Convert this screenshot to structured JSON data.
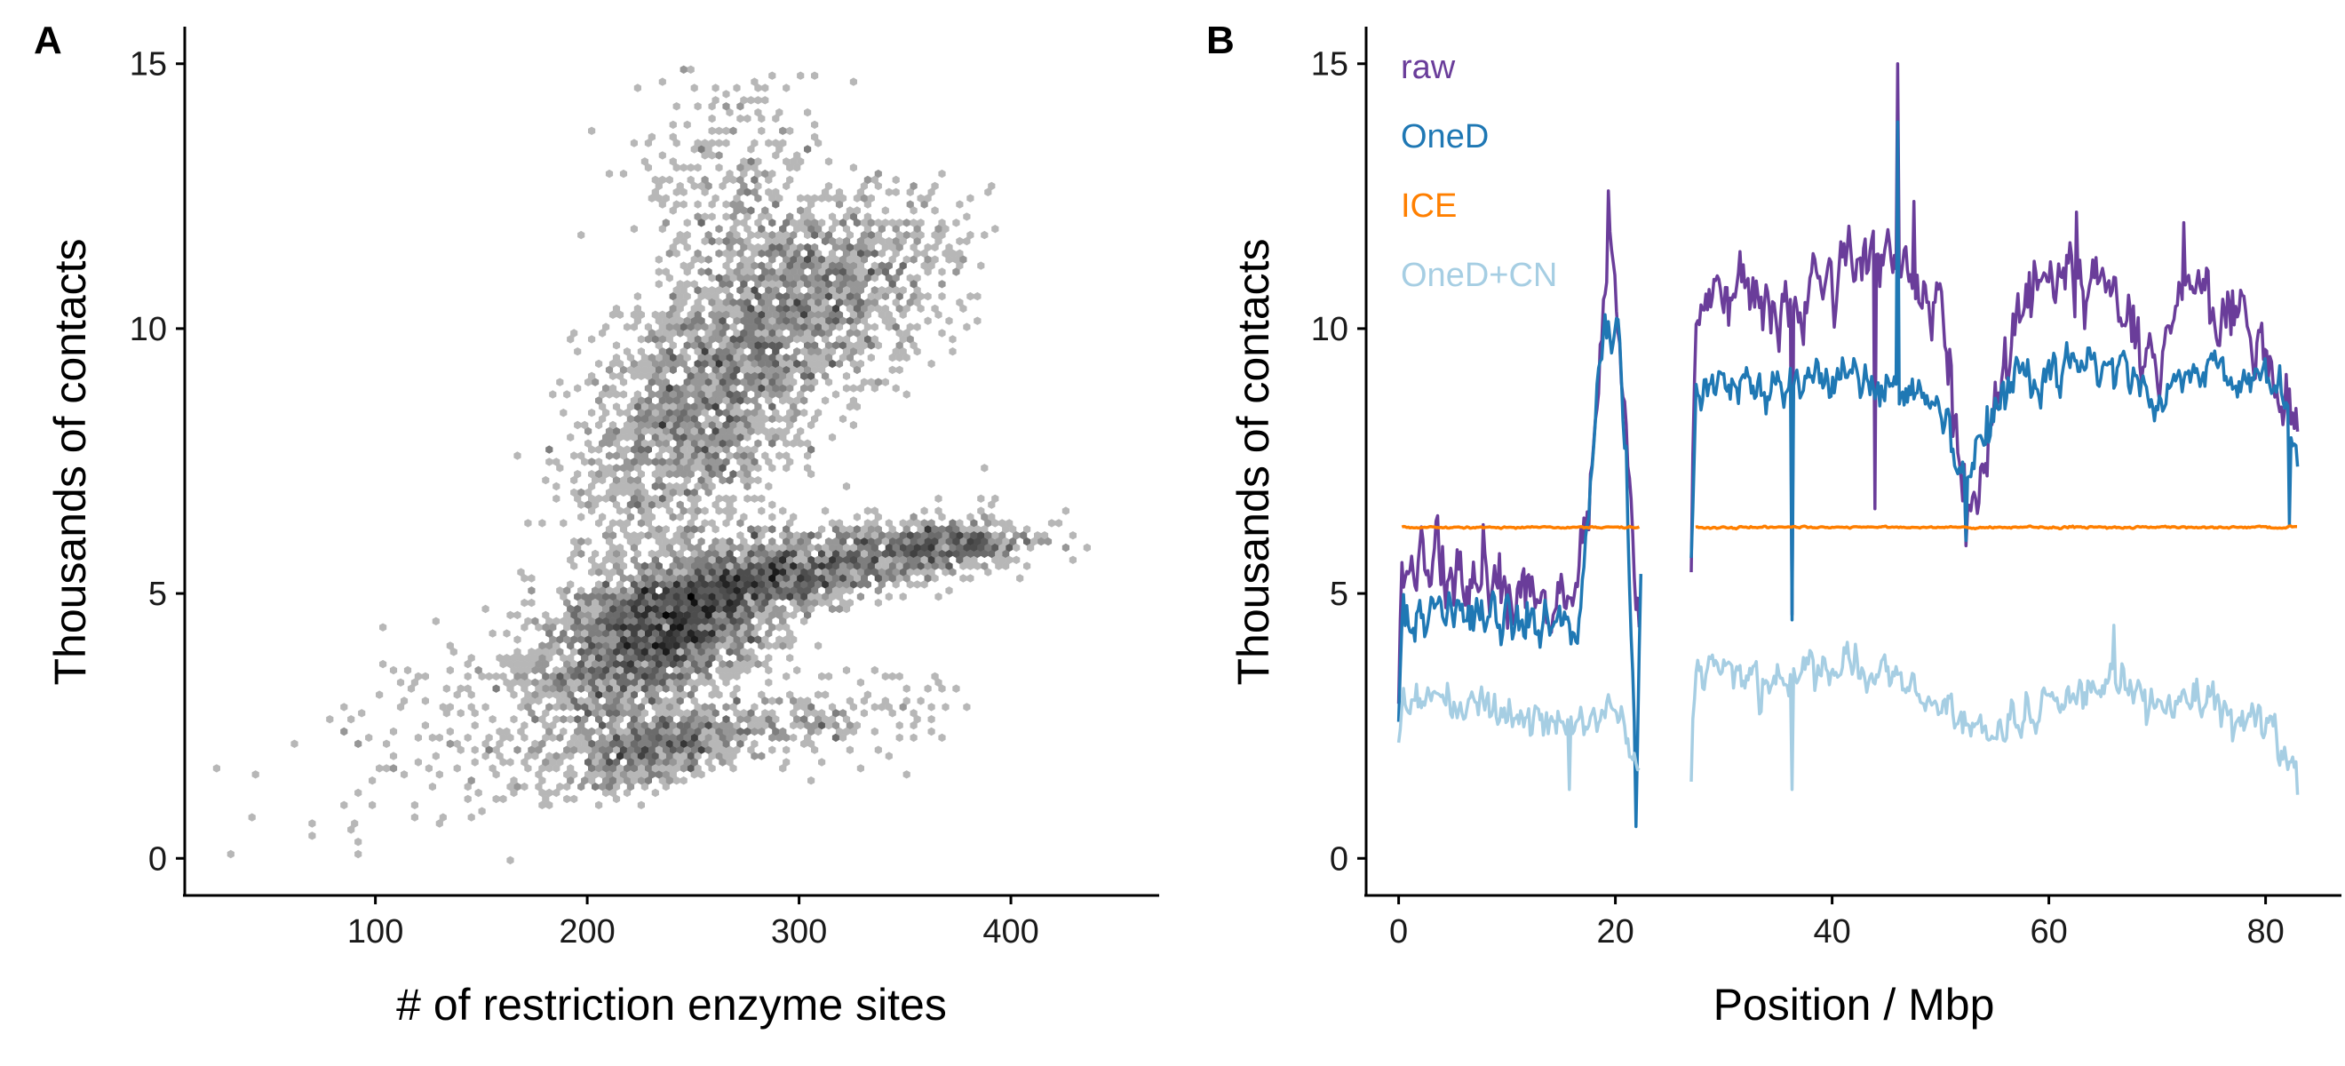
{
  "chart_data": [
    {
      "panel": "A",
      "type": "heatmap",
      "subtype": "hexbin",
      "xlabel": "# of restriction enzyme sites",
      "ylabel": "Thousands of contacts",
      "xlim": [
        10,
        470
      ],
      "ylim": [
        -0.7,
        15.7
      ],
      "xticks": [
        100,
        200,
        300,
        400
      ],
      "yticks": [
        0,
        5,
        10,
        15
      ],
      "grid": false,
      "color_scale": [
        "#e6e6e6",
        "#000000"
      ],
      "clusters": [
        {
          "x": 238,
          "y": 4.3,
          "sx": 30,
          "sy": 0.8,
          "rho": 0.55,
          "n": 2200
        },
        {
          "x": 300,
          "y": 5.4,
          "sx": 45,
          "sy": 0.45,
          "rho": 0.65,
          "n": 1100
        },
        {
          "x": 372,
          "y": 5.9,
          "sx": 20,
          "sy": 0.25,
          "rho": 0.3,
          "n": 300
        },
        {
          "x": 255,
          "y": 8.6,
          "sx": 30,
          "sy": 1.5,
          "rho": 0.5,
          "n": 1700
        },
        {
          "x": 315,
          "y": 10.8,
          "sx": 30,
          "sy": 0.9,
          "rho": 0.3,
          "n": 900
        },
        {
          "x": 270,
          "y": 12.8,
          "sx": 22,
          "sy": 1.1,
          "rho": 0.0,
          "n": 250
        },
        {
          "x": 235,
          "y": 2.1,
          "sx": 25,
          "sy": 0.4,
          "rho": 0.5,
          "n": 600
        },
        {
          "x": 160,
          "y": 2.7,
          "sx": 50,
          "sy": 1.1,
          "rho": 0.5,
          "n": 260
        },
        {
          "x": 315,
          "y": 2.6,
          "sx": 25,
          "sy": 0.4,
          "rho": 0.2,
          "n": 150
        }
      ]
    },
    {
      "panel": "B",
      "type": "line",
      "xlabel": "Position / Mbp",
      "ylabel": "Thousands of contacts",
      "xlim": [
        -3,
        87
      ],
      "ylim": [
        -0.7,
        15.7
      ],
      "xticks": [
        0,
        20,
        40,
        60,
        80
      ],
      "yticks": [
        0,
        5,
        10,
        15
      ],
      "grid": false,
      "legend_placement": "top-left",
      "series": [
        {
          "name": "raw",
          "color": "#6a3d9a",
          "width": 3.5,
          "noise": 0.55,
          "segments": [
            {
              "x": [
                0,
                0.3,
                1,
                3,
                5,
                8,
                11,
                14,
                16.5,
                17.5,
                18.5,
                19.5,
                20.3,
                21,
                21.7,
                22.2
              ],
              "y": [
                2.8,
                5.4,
                5.5,
                5.5,
                5.3,
                5.2,
                5.0,
                4.8,
                4.8,
                6.5,
                9.5,
                11.5,
                10.3,
                7.5,
                5.0,
                4.5
              ]
            },
            {
              "x": [
                27,
                27.4,
                29,
                32,
                35,
                38,
                42,
                45,
                46,
                47,
                50,
                52,
                53,
                55,
                58,
                62,
                66,
                70,
                73,
                76,
                79,
                81.5,
                83
              ],
              "y": [
                5.8,
                10.0,
                10.6,
                10.8,
                10.2,
                10.8,
                11.2,
                11.3,
                11.5,
                11.0,
                10.5,
                7.0,
                6.6,
                8.5,
                10.8,
                10.9,
                10.7,
                9.0,
                10.8,
                10.3,
                10.0,
                8.6,
                8.3
              ]
            }
          ],
          "spikes": [
            {
              "x": 7.8,
              "y": 6.3
            },
            {
              "x": 19.3,
              "y": 12.6
            },
            {
              "x": 36.3,
              "y": 4.6
            },
            {
              "x": 46.0,
              "y": 15.0
            },
            {
              "x": 52.3,
              "y": 5.9
            },
            {
              "x": 47.5,
              "y": 12.4
            },
            {
              "x": 44.0,
              "y": 6.6
            },
            {
              "x": 62.5,
              "y": 12.2
            },
            {
              "x": 72.5,
              "y": 12.0
            }
          ]
        },
        {
          "name": "OneD",
          "color": "#1f78b4",
          "width": 3.5,
          "noise": 0.35,
          "segments": [
            {
              "x": [
                0,
                0.3,
                1,
                4,
                8,
                12,
                16.5,
                17.5,
                18.5,
                19.5,
                20.3,
                21,
                21.5,
                22,
                22.4
              ],
              "y": [
                2.7,
                4.5,
                4.6,
                4.6,
                4.5,
                4.4,
                4.3,
                6.5,
                9.3,
                10.0,
                9.6,
                7.5,
                4.0,
                1.5,
                6.0
              ]
            },
            {
              "x": [
                27,
                27.4,
                30,
                35,
                40,
                45,
                48,
                51,
                52.5,
                55,
                58,
                62,
                66,
                70,
                73,
                76,
                80,
                82,
                83
              ],
              "y": [
                5.5,
                8.7,
                9.0,
                8.9,
                9.1,
                9.0,
                8.8,
                8.0,
                7.2,
                8.6,
                9.1,
                9.2,
                9.4,
                8.6,
                9.2,
                9.1,
                9.0,
                8.6,
                7.5
              ]
            }
          ],
          "spikes": [
            {
              "x": 21.9,
              "y": 0.6
            },
            {
              "x": 36.3,
              "y": 4.5
            },
            {
              "x": 46.0,
              "y": 13.9
            },
            {
              "x": 52.3,
              "y": 6.0
            },
            {
              "x": 82.2,
              "y": 6.3
            }
          ]
        },
        {
          "name": "ICE",
          "color": "#ff7f00",
          "width": 3.5,
          "noise": 0.015,
          "segments": [
            {
              "x": [
                0.3,
                22.3
              ],
              "y": [
                6.25,
                6.25
              ]
            },
            {
              "x": [
                27.4,
                83
              ],
              "y": [
                6.25,
                6.25
              ]
            }
          ],
          "spikes": []
        },
        {
          "name": "OneD+CN",
          "color": "#a6cee3",
          "width": 3.5,
          "noise": 0.3,
          "segments": [
            {
              "x": [
                0,
                0.5,
                3,
                6,
                10,
                14,
                16,
                18,
                19.5,
                20.5,
                21.5,
                22.3
              ],
              "y": [
                2.2,
                3.0,
                3.0,
                2.9,
                2.8,
                2.6,
                2.5,
                2.6,
                3.1,
                2.7,
                2.0,
                1.6
              ]
            },
            {
              "x": [
                27,
                27.4,
                30,
                35,
                40,
                45,
                48,
                51,
                53,
                56,
                60,
                64,
                66,
                70,
                75,
                80,
                83
              ],
              "y": [
                1.8,
                3.4,
                3.6,
                3.3,
                3.6,
                3.5,
                3.2,
                2.9,
                2.4,
                2.6,
                3.0,
                3.1,
                3.5,
                2.9,
                2.9,
                2.5,
                1.7
              ]
            }
          ],
          "spikes": [
            {
              "x": 15.8,
              "y": 1.3
            },
            {
              "x": 36.3,
              "y": 1.3
            },
            {
              "x": 66.0,
              "y": 4.4
            },
            {
              "x": 83.0,
              "y": 1.2
            }
          ]
        }
      ]
    }
  ],
  "panels": {
    "a": {
      "label": "A",
      "xlabel": "# of restriction enzyme sites",
      "ylabel": "Thousands of contacts"
    },
    "b": {
      "label": "B",
      "xlabel": "Position / Mbp",
      "ylabel": "Thousands of contacts"
    }
  },
  "legend": [
    "raw",
    "OneD",
    "ICE",
    "OneD+CN"
  ]
}
